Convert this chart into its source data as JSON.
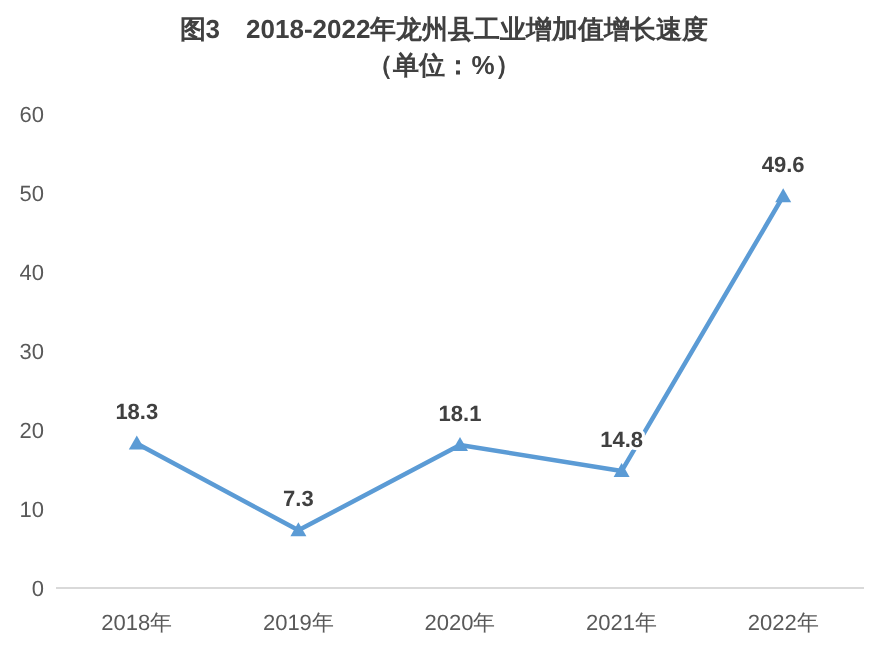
{
  "chart_data": {
    "type": "line",
    "title": "图3　2018-2022年龙州县工业增加值增长速度",
    "subtitle": "（单位：%）",
    "categories": [
      "2018年",
      "2019年",
      "2020年",
      "2021年",
      "2022年"
    ],
    "values": [
      18.3,
      7.3,
      18.1,
      14.8,
      49.6
    ],
    "color": "#5b9bd5",
    "ylim": [
      0,
      60
    ],
    "yticks": [
      0,
      10,
      20,
      30,
      40,
      50,
      60
    ],
    "grid": false,
    "marker": "triangle",
    "data_labels": true
  }
}
